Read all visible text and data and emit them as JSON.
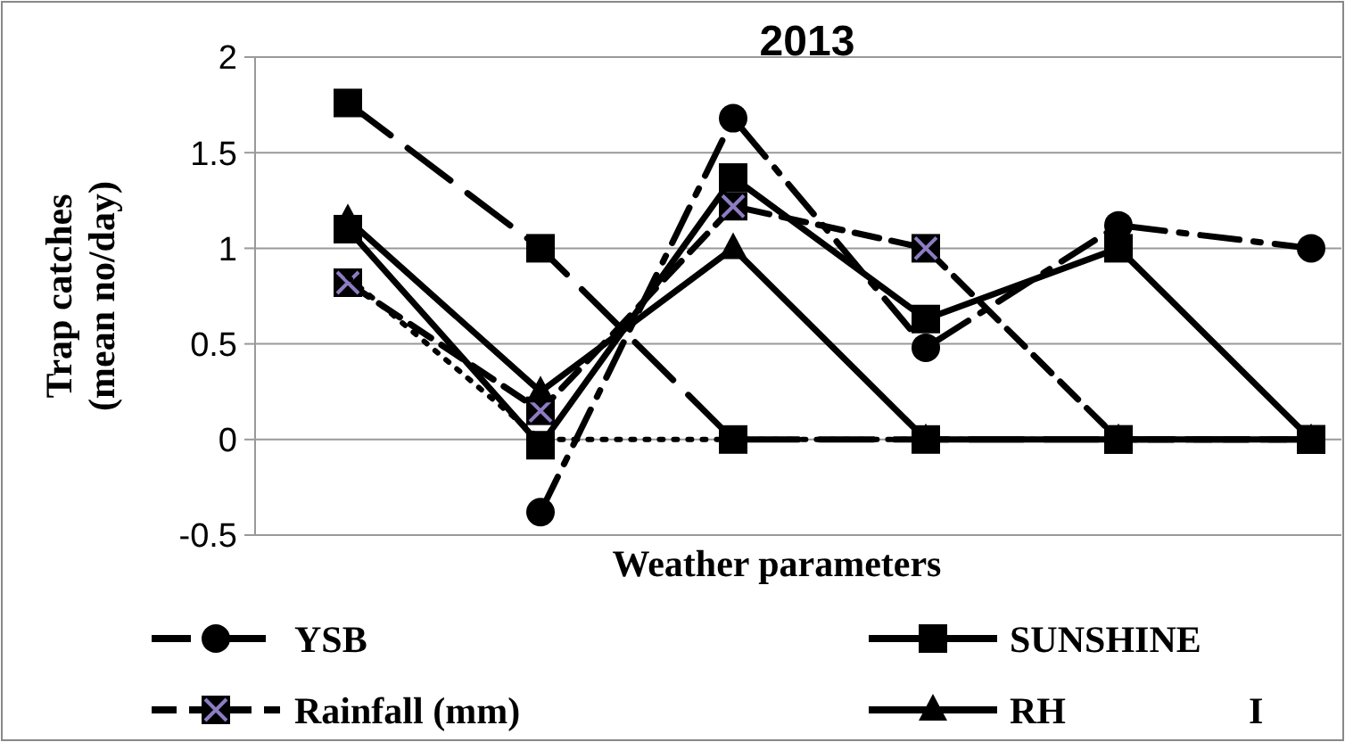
{
  "chart_data": {
    "type": "line",
    "title": "2013",
    "xlabel": "Weather parameters",
    "ylabel": "Trap catches\n(mean no/day)",
    "categories": [
      null,
      null,
      null,
      null,
      null,
      null
    ],
    "ylim": [
      -0.5,
      2
    ],
    "yticks": [
      -0.5,
      0,
      0.5,
      1,
      1.5,
      2
    ],
    "grid": "y",
    "legend": "bottom",
    "annotations": [
      "I"
    ],
    "series": [
      {
        "name": "YSB",
        "color": "#000000",
        "marker": "circle",
        "line_style": "dashdot",
        "values": [
          null,
          -0.38,
          1.68,
          0.48,
          1.12,
          1.0
        ]
      },
      {
        "name": "SUNSHINE",
        "color": "#000000",
        "marker": "square",
        "line_style": "solid",
        "values": [
          1.1,
          -0.03,
          1.37,
          0.63,
          1.0,
          0
        ]
      },
      {
        "name": "Rainfall (mm)",
        "color": "#000000",
        "marker": "square",
        "line_style": "dashed",
        "values": [
          0.82,
          0.15,
          1.22,
          1.0,
          0,
          0
        ]
      },
      {
        "name": "RH",
        "color": "#000000",
        "marker": "triangle",
        "line_style": "solid",
        "values": [
          1.15,
          0.25,
          1.0,
          0,
          0,
          0
        ]
      },
      {
        "color": "#000000",
        "marker": "square",
        "line_style": "longdash",
        "values": [
          1.76,
          1.0,
          0,
          0,
          0,
          0
        ]
      },
      {
        "color": "#000000",
        "marker": "none",
        "line_style": "dotted",
        "values": [
          0.85,
          0,
          0,
          0,
          0,
          0
        ]
      }
    ]
  }
}
